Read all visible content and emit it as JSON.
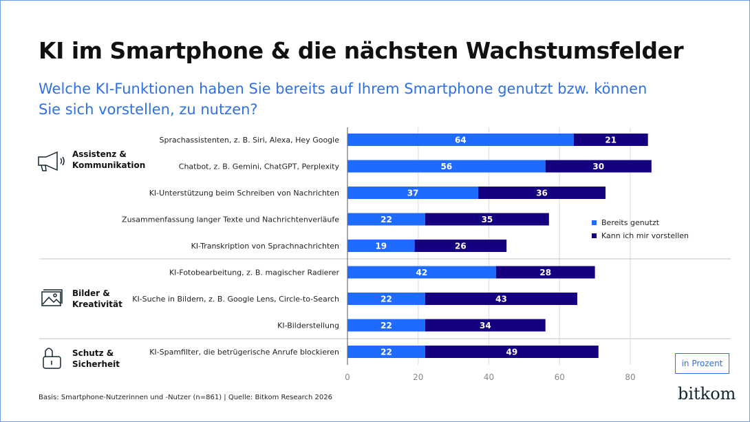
{
  "title": "KI im Smartphone & die nächsten Wachstumsfelder",
  "subtitle": "Welche KI-Funktionen haben Sie bereits auf Ihrem Smartphone genutzt bzw. können Sie sich vorstellen, zu nutzen?",
  "groups": [
    {
      "label_line1": "Assistenz &",
      "label_line2": "Kommunikation",
      "icon": "megaphone-icon"
    },
    {
      "label_line1": "Bilder &",
      "label_line2": "Kreativität",
      "icon": "image-icon"
    },
    {
      "label_line1": "Schutz &",
      "label_line2": "Sicherheit",
      "icon": "lock-icon"
    }
  ],
  "unit_label": "in Prozent",
  "footnote": "Basis: Smartphone-Nutzerinnen und -Nutzer (n=861) | Quelle: Bitkom Research 2026",
  "logo": "bitkom",
  "colors": {
    "used": "#1f6bff",
    "imagine": "#150080",
    "accent": "#2f6fe8"
  },
  "chart_data": {
    "type": "bar",
    "orientation": "horizontal",
    "stacked": true,
    "categories": [
      "Sprachassistenten, z. B. Siri, Alexa, Hey Google",
      "Chatbot, z. B. Gemini, ChatGPT, Perplexity",
      "KI-Unterstützung beim Schreiben von Nachrichten",
      "Zusammenfassung langer Texte und Nachrichtenverläufe",
      "KI-Transkription von Sprachnachrichten",
      "KI-Fotobearbeitung, z. B. magischer Radierer",
      "KI-Suche in Bildern, z. B. Google Lens, Circle-to-Search",
      "KI-Bilderstellung",
      "KI-Spamfilter, die betrügerische Anrufe blockieren"
    ],
    "series": [
      {
        "name": "Bereits genutzt",
        "values": [
          64,
          56,
          37,
          22,
          19,
          42,
          22,
          22,
          22
        ]
      },
      {
        "name": "Kann ich mir vorstellen",
        "values": [
          21,
          30,
          36,
          35,
          26,
          28,
          43,
          34,
          49
        ]
      }
    ],
    "xlim": [
      0,
      85
    ],
    "xticks": [
      0,
      20,
      40,
      60,
      80
    ],
    "grid": true,
    "legend": "right"
  }
}
